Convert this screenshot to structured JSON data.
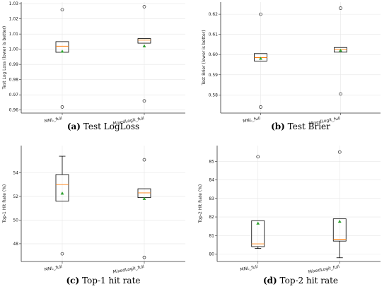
{
  "colors": {
    "median": "#ff7f0e",
    "mean": "#2ca02c",
    "box": "#000000",
    "grid": "#e6e6e6"
  },
  "chart_data": [
    {
      "id": "a",
      "type": "boxplot",
      "caption_label": "(a)",
      "caption_text": " Test LogLoss",
      "ylabel": "Test Log Loss (lower is better)",
      "categories": [
        "MNL_full",
        "MixedLogit_full"
      ],
      "ylim": [
        0.958,
        1.031
      ],
      "yticks": [
        0.96,
        0.97,
        0.98,
        0.99,
        1.0,
        1.01,
        1.02,
        1.03
      ],
      "ytick_labels": [
        "0.96",
        "0.97",
        "0.98",
        "0.99",
        "1.00",
        "1.01",
        "1.02",
        "1.03"
      ],
      "grid": true,
      "boxes": [
        {
          "name": "MNL_full",
          "whislo": 0.998,
          "q1": 0.998,
          "median": 1.002,
          "q3": 1.005,
          "whishi": 1.005,
          "mean": 0.9985,
          "fliers": [
            1.026,
            0.962
          ]
        },
        {
          "name": "MixedLogit_full",
          "whislo": 1.004,
          "q1": 1.004,
          "median": 1.006,
          "q3": 1.007,
          "whishi": 1.007,
          "mean": 1.002,
          "fliers": [
            1.028,
            0.966
          ]
        }
      ]
    },
    {
      "id": "b",
      "type": "boxplot",
      "caption_label": "(b)",
      "caption_text": " Test Brier",
      "ylabel": "Test Brier (lower is better)",
      "categories": [
        "MNL_full",
        "MixedLogit_full"
      ],
      "ylim": [
        0.571,
        0.626
      ],
      "yticks": [
        0.58,
        0.59,
        0.6,
        0.61,
        0.62
      ],
      "ytick_labels": [
        "0.58",
        "0.59",
        "0.60",
        "0.61",
        "0.62"
      ],
      "grid": true,
      "boxes": [
        {
          "name": "MNL_full",
          "whislo": 0.5968,
          "q1": 0.5968,
          "median": 0.5985,
          "q3": 0.6005,
          "whishi": 0.6005,
          "mean": 0.598,
          "fliers": [
            0.62,
            0.574
          ]
        },
        {
          "name": "MixedLogit_full",
          "whislo": 0.6012,
          "q1": 0.6012,
          "median": 0.6025,
          "q3": 0.6035,
          "whishi": 0.6035,
          "mean": 0.602,
          "fliers": [
            0.623,
            0.5805
          ]
        }
      ]
    },
    {
      "id": "c",
      "type": "boxplot",
      "caption_label": "(c)",
      "caption_text": " Top-1 hit rate",
      "ylabel": "Top-1 Hit Rate (%)",
      "categories": [
        "MNL_full",
        "MixedLogit_full"
      ],
      "ylim": [
        46.5,
        56.3
      ],
      "yticks": [
        48,
        50,
        52,
        54
      ],
      "ytick_labels": [
        "48",
        "50",
        "52",
        "54"
      ],
      "grid": true,
      "boxes": [
        {
          "name": "MNL_full",
          "whislo": 51.6,
          "q1": 51.6,
          "median": 53.0,
          "q3": 53.85,
          "whishi": 55.4,
          "mean": 52.25,
          "fliers": [
            47.15
          ]
        },
        {
          "name": "MixedLogit_full",
          "whislo": 51.9,
          "q1": 51.9,
          "median": 52.3,
          "q3": 52.65,
          "whishi": 52.65,
          "mean": 51.8,
          "fliers": [
            55.1,
            46.85
          ]
        }
      ]
    },
    {
      "id": "d",
      "type": "boxplot",
      "caption_label": "(d)",
      "caption_text": " Top-2 hit rate",
      "ylabel": "Top-2 Hit Rate (%)",
      "categories": [
        "MNL_full",
        "MixedLogit_full"
      ],
      "ylim": [
        79.6,
        85.85
      ],
      "yticks": [
        80,
        81,
        82,
        83,
        84,
        85
      ],
      "ytick_labels": [
        "80",
        "81",
        "82",
        "83",
        "84",
        "85"
      ],
      "grid": true,
      "boxes": [
        {
          "name": "MNL_full",
          "whislo": 80.3,
          "q1": 80.4,
          "median": 80.55,
          "q3": 81.8,
          "whishi": 81.8,
          "mean": 81.65,
          "fliers": [
            85.25
          ]
        },
        {
          "name": "MixedLogit_full",
          "whislo": 79.8,
          "q1": 80.7,
          "median": 80.8,
          "q3": 81.9,
          "whishi": 81.9,
          "mean": 81.75,
          "fliers": [
            85.5
          ]
        }
      ]
    }
  ]
}
